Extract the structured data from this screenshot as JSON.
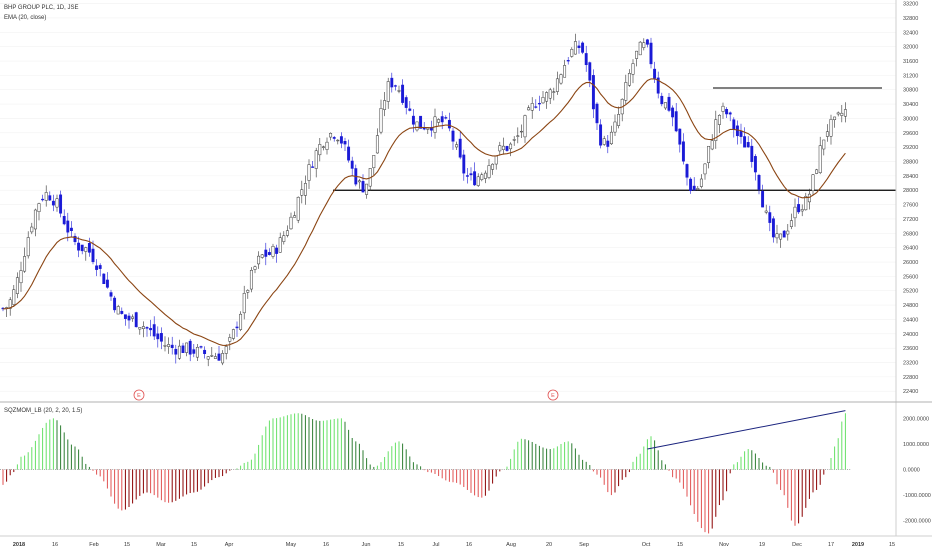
{
  "chart": {
    "symbol_title": "BHP GROUP PLC, 1D, JSE",
    "ema_label": "EMA (20, close)",
    "indicator_label": "SQZMOM_LB (20, 2, 20, 1.5)",
    "earnings_marker": "E"
  },
  "colors": {
    "bull_candle": "#ffffff",
    "bear_candle": "#1a1ad6",
    "candle_outline": "#333333",
    "ema_line": "#8b4513",
    "hist_up_strong": "#66e066",
    "hist_up_weak": "#2e7d32",
    "hist_down_strong": "#e05050",
    "hist_down_weak": "#8b0000",
    "trendline": "#000000",
    "indicator_trendline": "#1a237e",
    "earnings_marker": "#e05050",
    "grid": "#f2f2f2",
    "axis_text": "#444444"
  },
  "chart_data": [
    {
      "type": "candlestick",
      "title": "BHP GROUP PLC, 1D, JSE",
      "series": [
        {
          "name": "EMA (20, close)"
        }
      ],
      "y_ticks": [
        22400,
        22800,
        23200,
        23600,
        24000,
        24400,
        24800,
        25200,
        25600,
        26000,
        26400,
        26800,
        27200,
        27600,
        28000,
        28400,
        28800,
        29200,
        29600,
        30000,
        30400,
        30800,
        31200,
        31600,
        32000,
        32400,
        32800,
        33200
      ],
      "ylim": [
        22100,
        33300
      ],
      "x_labels": [
        "2018",
        "16",
        "Feb",
        "15",
        "Mar",
        "15",
        "Apr",
        "May",
        "16",
        "Jun",
        "15",
        "Jul",
        "16",
        "Aug",
        "20",
        "Sep",
        "Oct",
        "15",
        "Nov",
        "19",
        "Dec",
        "17",
        "2019",
        "15"
      ],
      "close_keypoints": [
        {
          "i": 0,
          "v": 24700
        },
        {
          "i": 12,
          "v": 27900
        },
        {
          "i": 22,
          "v": 26400
        },
        {
          "i": 35,
          "v": 24400
        },
        {
          "i": 48,
          "v": 23600
        },
        {
          "i": 60,
          "v": 23400
        },
        {
          "i": 73,
          "v": 26200
        },
        {
          "i": 92,
          "v": 29600
        },
        {
          "i": 100,
          "v": 28100
        },
        {
          "i": 108,
          "v": 31000
        },
        {
          "i": 116,
          "v": 29800
        },
        {
          "i": 122,
          "v": 29900
        },
        {
          "i": 130,
          "v": 28300
        },
        {
          "i": 140,
          "v": 29200
        },
        {
          "i": 150,
          "v": 30600
        },
        {
          "i": 160,
          "v": 32000
        },
        {
          "i": 167,
          "v": 29300
        },
        {
          "i": 178,
          "v": 32000
        },
        {
          "i": 184,
          "v": 30400
        },
        {
          "i": 192,
          "v": 28000
        },
        {
          "i": 200,
          "v": 30200
        },
        {
          "i": 206,
          "v": 29300
        },
        {
          "i": 215,
          "v": 26600
        },
        {
          "i": 222,
          "v": 27600
        },
        {
          "i": 230,
          "v": 29800
        },
        {
          "i": 234,
          "v": 30200
        }
      ],
      "annotations": {
        "horizontal_line_1": 28000,
        "horizontal_line_2": 30850
      }
    },
    {
      "type": "bar",
      "title": "SQZMOM_LB (20, 2, 20, 1.5)",
      "y_ticks": [
        2000,
        1000,
        0,
        -1000,
        -2000
      ],
      "y_tick_labels": [
        "2000.0000",
        "1000.0000",
        "0.0000",
        "-1000.0000",
        "-2000.0000"
      ],
      "ylim": [
        -2600,
        2600
      ],
      "keypoints": [
        {
          "i": 0,
          "v": -600
        },
        {
          "i": 3,
          "v": -100
        },
        {
          "i": 5,
          "v": 500
        },
        {
          "i": 14,
          "v": 2000
        },
        {
          "i": 20,
          "v": 900
        },
        {
          "i": 24,
          "v": 100
        },
        {
          "i": 26,
          "v": -200
        },
        {
          "i": 33,
          "v": -1600
        },
        {
          "i": 40,
          "v": -900
        },
        {
          "i": 46,
          "v": -1300
        },
        {
          "i": 53,
          "v": -900
        },
        {
          "i": 60,
          "v": -300
        },
        {
          "i": 64,
          "v": 0
        },
        {
          "i": 68,
          "v": 300
        },
        {
          "i": 75,
          "v": 2000
        },
        {
          "i": 82,
          "v": 2200
        },
        {
          "i": 88,
          "v": 1900
        },
        {
          "i": 94,
          "v": 2000
        },
        {
          "i": 98,
          "v": 1100
        },
        {
          "i": 103,
          "v": 100
        },
        {
          "i": 110,
          "v": 1100
        },
        {
          "i": 115,
          "v": 200
        },
        {
          "i": 118,
          "v": -100
        },
        {
          "i": 125,
          "v": -500
        },
        {
          "i": 133,
          "v": -1100
        },
        {
          "i": 139,
          "v": 0
        },
        {
          "i": 144,
          "v": 1200
        },
        {
          "i": 152,
          "v": 800
        },
        {
          "i": 157,
          "v": 1100
        },
        {
          "i": 162,
          "v": 300
        },
        {
          "i": 165,
          "v": -200
        },
        {
          "i": 169,
          "v": -1000
        },
        {
          "i": 173,
          "v": -300
        },
        {
          "i": 176,
          "v": 500
        },
        {
          "i": 180,
          "v": 1300
        },
        {
          "i": 184,
          "v": 200
        },
        {
          "i": 186,
          "v": -300
        },
        {
          "i": 196,
          "v": -2500
        },
        {
          "i": 200,
          "v": -1200
        },
        {
          "i": 203,
          "v": 200
        },
        {
          "i": 207,
          "v": 800
        },
        {
          "i": 213,
          "v": 100
        },
        {
          "i": 216,
          "v": -800
        },
        {
          "i": 220,
          "v": -2200
        },
        {
          "i": 226,
          "v": -800
        },
        {
          "i": 229,
          "v": 0
        },
        {
          "i": 231,
          "v": 900
        },
        {
          "i": 234,
          "v": 2200
        }
      ]
    }
  ]
}
